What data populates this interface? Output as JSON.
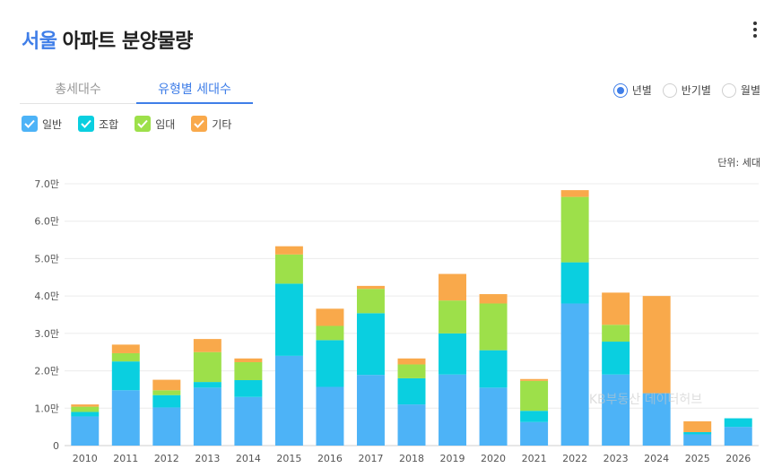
{
  "header": {
    "region": "서울",
    "title": "아파트 분양물량"
  },
  "tabs": [
    {
      "label": "총세대수",
      "active": false
    },
    {
      "label": "유형별 세대수",
      "active": true
    }
  ],
  "period_options": [
    {
      "label": "년별",
      "selected": true
    },
    {
      "label": "반기별",
      "selected": false
    },
    {
      "label": "월별",
      "selected": false
    }
  ],
  "unit_label": "단위: 세대",
  "watermark": "KB부동산 데이터허브",
  "chart_data": {
    "type": "bar",
    "stacked": true,
    "categories": [
      "2010",
      "2011",
      "2012",
      "2013",
      "2014",
      "2015",
      "2016",
      "2017",
      "2018",
      "2019",
      "2020",
      "2021",
      "2022",
      "2023",
      "2024",
      "2025",
      "2026"
    ],
    "series": [
      {
        "name": "일반",
        "color": "#4db3f7",
        "values": [
          7800,
          14800,
          10200,
          15500,
          13000,
          24000,
          15700,
          18900,
          11000,
          19000,
          15500,
          6300,
          38000,
          19000,
          14000,
          3000,
          5000
        ]
      },
      {
        "name": "조합",
        "color": "#0acfe0",
        "values": [
          1200,
          7700,
          3300,
          1500,
          4500,
          19300,
          12500,
          16500,
          7000,
          11000,
          10000,
          3000,
          11000,
          8800,
          0,
          600,
          2300
        ]
      },
      {
        "name": "임대",
        "color": "#9de04a",
        "values": [
          1400,
          2200,
          1300,
          8000,
          4800,
          7800,
          3800,
          6500,
          3700,
          8800,
          12500,
          8000,
          17500,
          4500,
          0,
          0,
          0
        ]
      },
      {
        "name": "기타",
        "color": "#f9a94b",
        "values": [
          600,
          2300,
          2800,
          3500,
          1000,
          2200,
          4600,
          800,
          1600,
          7100,
          2500,
          500,
          1800,
          8600,
          26000,
          2900,
          0
        ]
      }
    ],
    "y_ticks": [
      "0",
      "1.0만",
      "2.0만",
      "3.0만",
      "4.0만",
      "5.0만",
      "6.0만",
      "7.0만"
    ],
    "ylim": [
      0,
      70000
    ],
    "grid": true,
    "legend_position": "top-left"
  }
}
